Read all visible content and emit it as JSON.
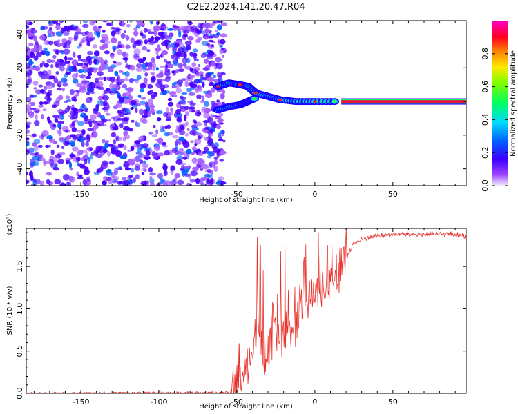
{
  "title": "C2E2.2024.141.20.47.R04",
  "colors": {
    "spectral_points": "#5a00ff",
    "snr_line": "#e8302a",
    "axis": "#000000"
  },
  "chart_data": [
    {
      "type": "heatmap",
      "xlabel": "Height of straight line (km)",
      "ylabel": "Frequency (Hz)",
      "xlim": [
        -185,
        97
      ],
      "ylim": [
        -50,
        48
      ],
      "x_ticks": [
        -150,
        -100,
        -50,
        0,
        50
      ],
      "y_ticks": [
        -40,
        -20,
        0,
        20,
        40
      ],
      "colorbar": {
        "label": "Normalized spectral amplitude",
        "range": [
          0,
          1
        ],
        "ticks": [
          0.0,
          0.2,
          0.4,
          0.6,
          0.8
        ],
        "tick_labels": [
          "0.0",
          "0.2",
          "0.4",
          "0.6",
          "0.8"
        ],
        "colormap": "rainbow (violet-blue-cyan-green-yellow-red-magenta)"
      },
      "features": {
        "noise_region_x": [
          -185,
          -62
        ],
        "noise_amplitude": "low (0.0-0.3), speckled",
        "signal_trace": [
          {
            "x": -62,
            "y": 9
          },
          {
            "x": -55,
            "y": 11
          },
          {
            "x": -48,
            "y": 10
          },
          {
            "x": -43,
            "y": 9
          },
          {
            "x": -38,
            "y": 5
          },
          {
            "x": -30,
            "y": 3
          },
          {
            "x": -22,
            "y": 1
          },
          {
            "x": -12,
            "y": 0
          },
          {
            "x": 0,
            "y": 0
          },
          {
            "x": 15,
            "y": 0
          }
        ],
        "secondary_trace": [
          {
            "x": -62,
            "y": -5
          },
          {
            "x": -55,
            "y": -3
          },
          {
            "x": -48,
            "y": -2
          },
          {
            "x": -43,
            "y": 0
          },
          {
            "x": -38,
            "y": 2
          }
        ],
        "steady_band": {
          "x_start": 17,
          "x_end": 97,
          "y": 0,
          "amplitude": 1.0
        }
      }
    },
    {
      "type": "line",
      "xlabel": "Height of straight line (km)",
      "ylabel": "SNR (10 * v/v)",
      "y_multiplier_label": "(x10",
      "y_multiplier_exp": "4",
      "y_multiplier_close": ")",
      "xlim": [
        -185,
        97
      ],
      "ylim": [
        0,
        1.95
      ],
      "x_ticks": [
        -150,
        -100,
        -50,
        0,
        50
      ],
      "y_ticks": [
        0.0,
        0.5,
        1.0,
        1.5
      ],
      "y_tick_labels": [
        "0.0",
        "0.5",
        "1.0",
        "1.5"
      ],
      "series": [
        {
          "profile": [
            {
              "x": -185,
              "y": 0.0
            },
            {
              "x": -55,
              "y": 0.01
            },
            {
              "x": -50,
              "y": 0.05
            },
            {
              "x": -45,
              "y": 0.25
            },
            {
              "x": -40,
              "y": 0.45
            },
            {
              "x": -37,
              "y": 0.8
            },
            {
              "x": -35,
              "y": 0.6
            },
            {
              "x": -30,
              "y": 0.45
            },
            {
              "x": -25,
              "y": 0.6
            },
            {
              "x": -20,
              "y": 0.7
            },
            {
              "x": -15,
              "y": 0.75
            },
            {
              "x": -10,
              "y": 0.95
            },
            {
              "x": -5,
              "y": 1.1
            },
            {
              "x": 0,
              "y": 1.2
            },
            {
              "x": 5,
              "y": 1.25
            },
            {
              "x": 10,
              "y": 1.35
            },
            {
              "x": 15,
              "y": 1.45
            },
            {
              "x": 20,
              "y": 1.6
            },
            {
              "x": 25,
              "y": 1.78
            },
            {
              "x": 35,
              "y": 1.85
            },
            {
              "x": 50,
              "y": 1.88
            },
            {
              "x": 70,
              "y": 1.88
            },
            {
              "x": 90,
              "y": 1.88
            },
            {
              "x": 97,
              "y": 1.85
            }
          ],
          "spikes": [
            {
              "x": -37,
              "y": 1.85
            },
            {
              "x": -35,
              "y": 1.75
            },
            {
              "x": -33,
              "y": 1.45
            },
            {
              "x": -27,
              "y": 1.8
            },
            {
              "x": -24,
              "y": 1.7
            },
            {
              "x": -22,
              "y": 1.68
            },
            {
              "x": -19,
              "y": 1.75
            },
            {
              "x": -7,
              "y": 1.55
            },
            {
              "x": 8,
              "y": 1.75
            },
            {
              "x": 20,
              "y": 1.95
            }
          ]
        }
      ]
    }
  ]
}
